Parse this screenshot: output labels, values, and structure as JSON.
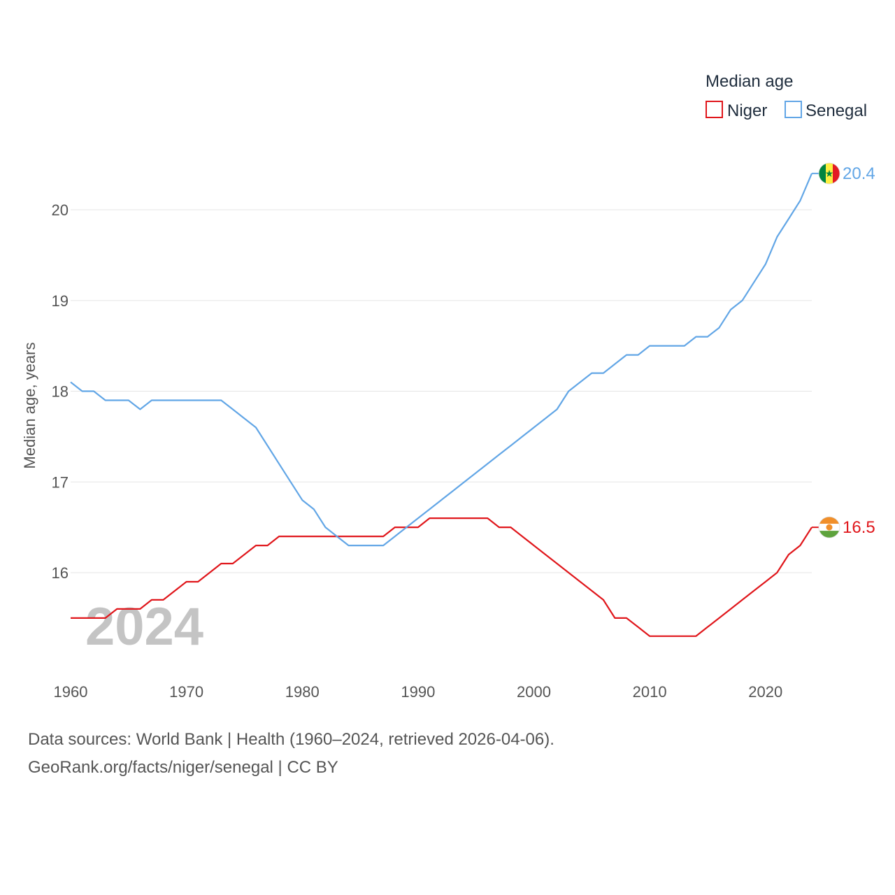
{
  "chart_data": {
    "type": "line",
    "legend_title": "Median age",
    "ylabel": "Median age, years",
    "xlabel": "",
    "x_range": [
      1960,
      2024
    ],
    "ylim": [
      15,
      20.5
    ],
    "y_ticks": [
      16,
      17,
      18,
      19,
      20
    ],
    "x_ticks": [
      1960,
      1970,
      1980,
      1990,
      2000,
      2010,
      2020
    ],
    "year_overlay": "2024",
    "legend_position": "top-right",
    "x": [
      1960,
      1961,
      1962,
      1963,
      1964,
      1965,
      1966,
      1967,
      1968,
      1969,
      1970,
      1971,
      1972,
      1973,
      1974,
      1975,
      1976,
      1977,
      1978,
      1979,
      1980,
      1981,
      1982,
      1983,
      1984,
      1985,
      1986,
      1987,
      1988,
      1989,
      1990,
      1991,
      1992,
      1993,
      1994,
      1995,
      1996,
      1997,
      1998,
      1999,
      2000,
      2001,
      2002,
      2003,
      2004,
      2005,
      2006,
      2007,
      2008,
      2009,
      2010,
      2011,
      2012,
      2013,
      2014,
      2015,
      2016,
      2017,
      2018,
      2019,
      2020,
      2021,
      2022,
      2023,
      2024
    ],
    "series": [
      {
        "name": "Niger",
        "color": "#e0161b",
        "end_label": "16.5",
        "flag": "niger-flag",
        "values": [
          15.5,
          15.5,
          15.5,
          15.5,
          15.6,
          15.6,
          15.6,
          15.7,
          15.7,
          15.8,
          15.9,
          15.9,
          16.0,
          16.1,
          16.1,
          16.2,
          16.3,
          16.3,
          16.4,
          16.4,
          16.4,
          16.4,
          16.4,
          16.4,
          16.4,
          16.4,
          16.4,
          16.4,
          16.5,
          16.5,
          16.5,
          16.6,
          16.6,
          16.6,
          16.6,
          16.6,
          16.6,
          16.5,
          16.5,
          16.4,
          16.3,
          16.2,
          16.1,
          16.0,
          15.9,
          15.8,
          15.7,
          15.5,
          15.5,
          15.4,
          15.3,
          15.3,
          15.3,
          15.3,
          15.3,
          15.4,
          15.5,
          15.6,
          15.7,
          15.8,
          15.9,
          16.0,
          16.2,
          16.3,
          16.5
        ]
      },
      {
        "name": "Senegal",
        "color": "#62a6e6",
        "end_label": "20.4",
        "flag": "senegal-flag",
        "values": [
          18.1,
          18.0,
          18.0,
          17.9,
          17.9,
          17.9,
          17.8,
          17.9,
          17.9,
          17.9,
          17.9,
          17.9,
          17.9,
          17.9,
          17.8,
          17.7,
          17.6,
          17.4,
          17.2,
          17.0,
          16.8,
          16.7,
          16.5,
          16.4,
          16.3,
          16.3,
          16.3,
          16.3,
          16.4,
          16.5,
          16.6,
          16.7,
          16.8,
          16.9,
          17.0,
          17.1,
          17.2,
          17.3,
          17.4,
          17.5,
          17.6,
          17.7,
          17.8,
          18.0,
          18.1,
          18.2,
          18.2,
          18.3,
          18.4,
          18.4,
          18.5,
          18.5,
          18.5,
          18.5,
          18.6,
          18.6,
          18.7,
          18.9,
          19.0,
          19.2,
          19.4,
          19.7,
          19.9,
          20.1,
          20.4
        ]
      }
    ]
  },
  "footer": {
    "line1": "Data sources: World Bank | Health (1960–2024, retrieved 2026-04-06).",
    "line2": "GeoRank.org/facts/niger/senegal | CC BY"
  }
}
